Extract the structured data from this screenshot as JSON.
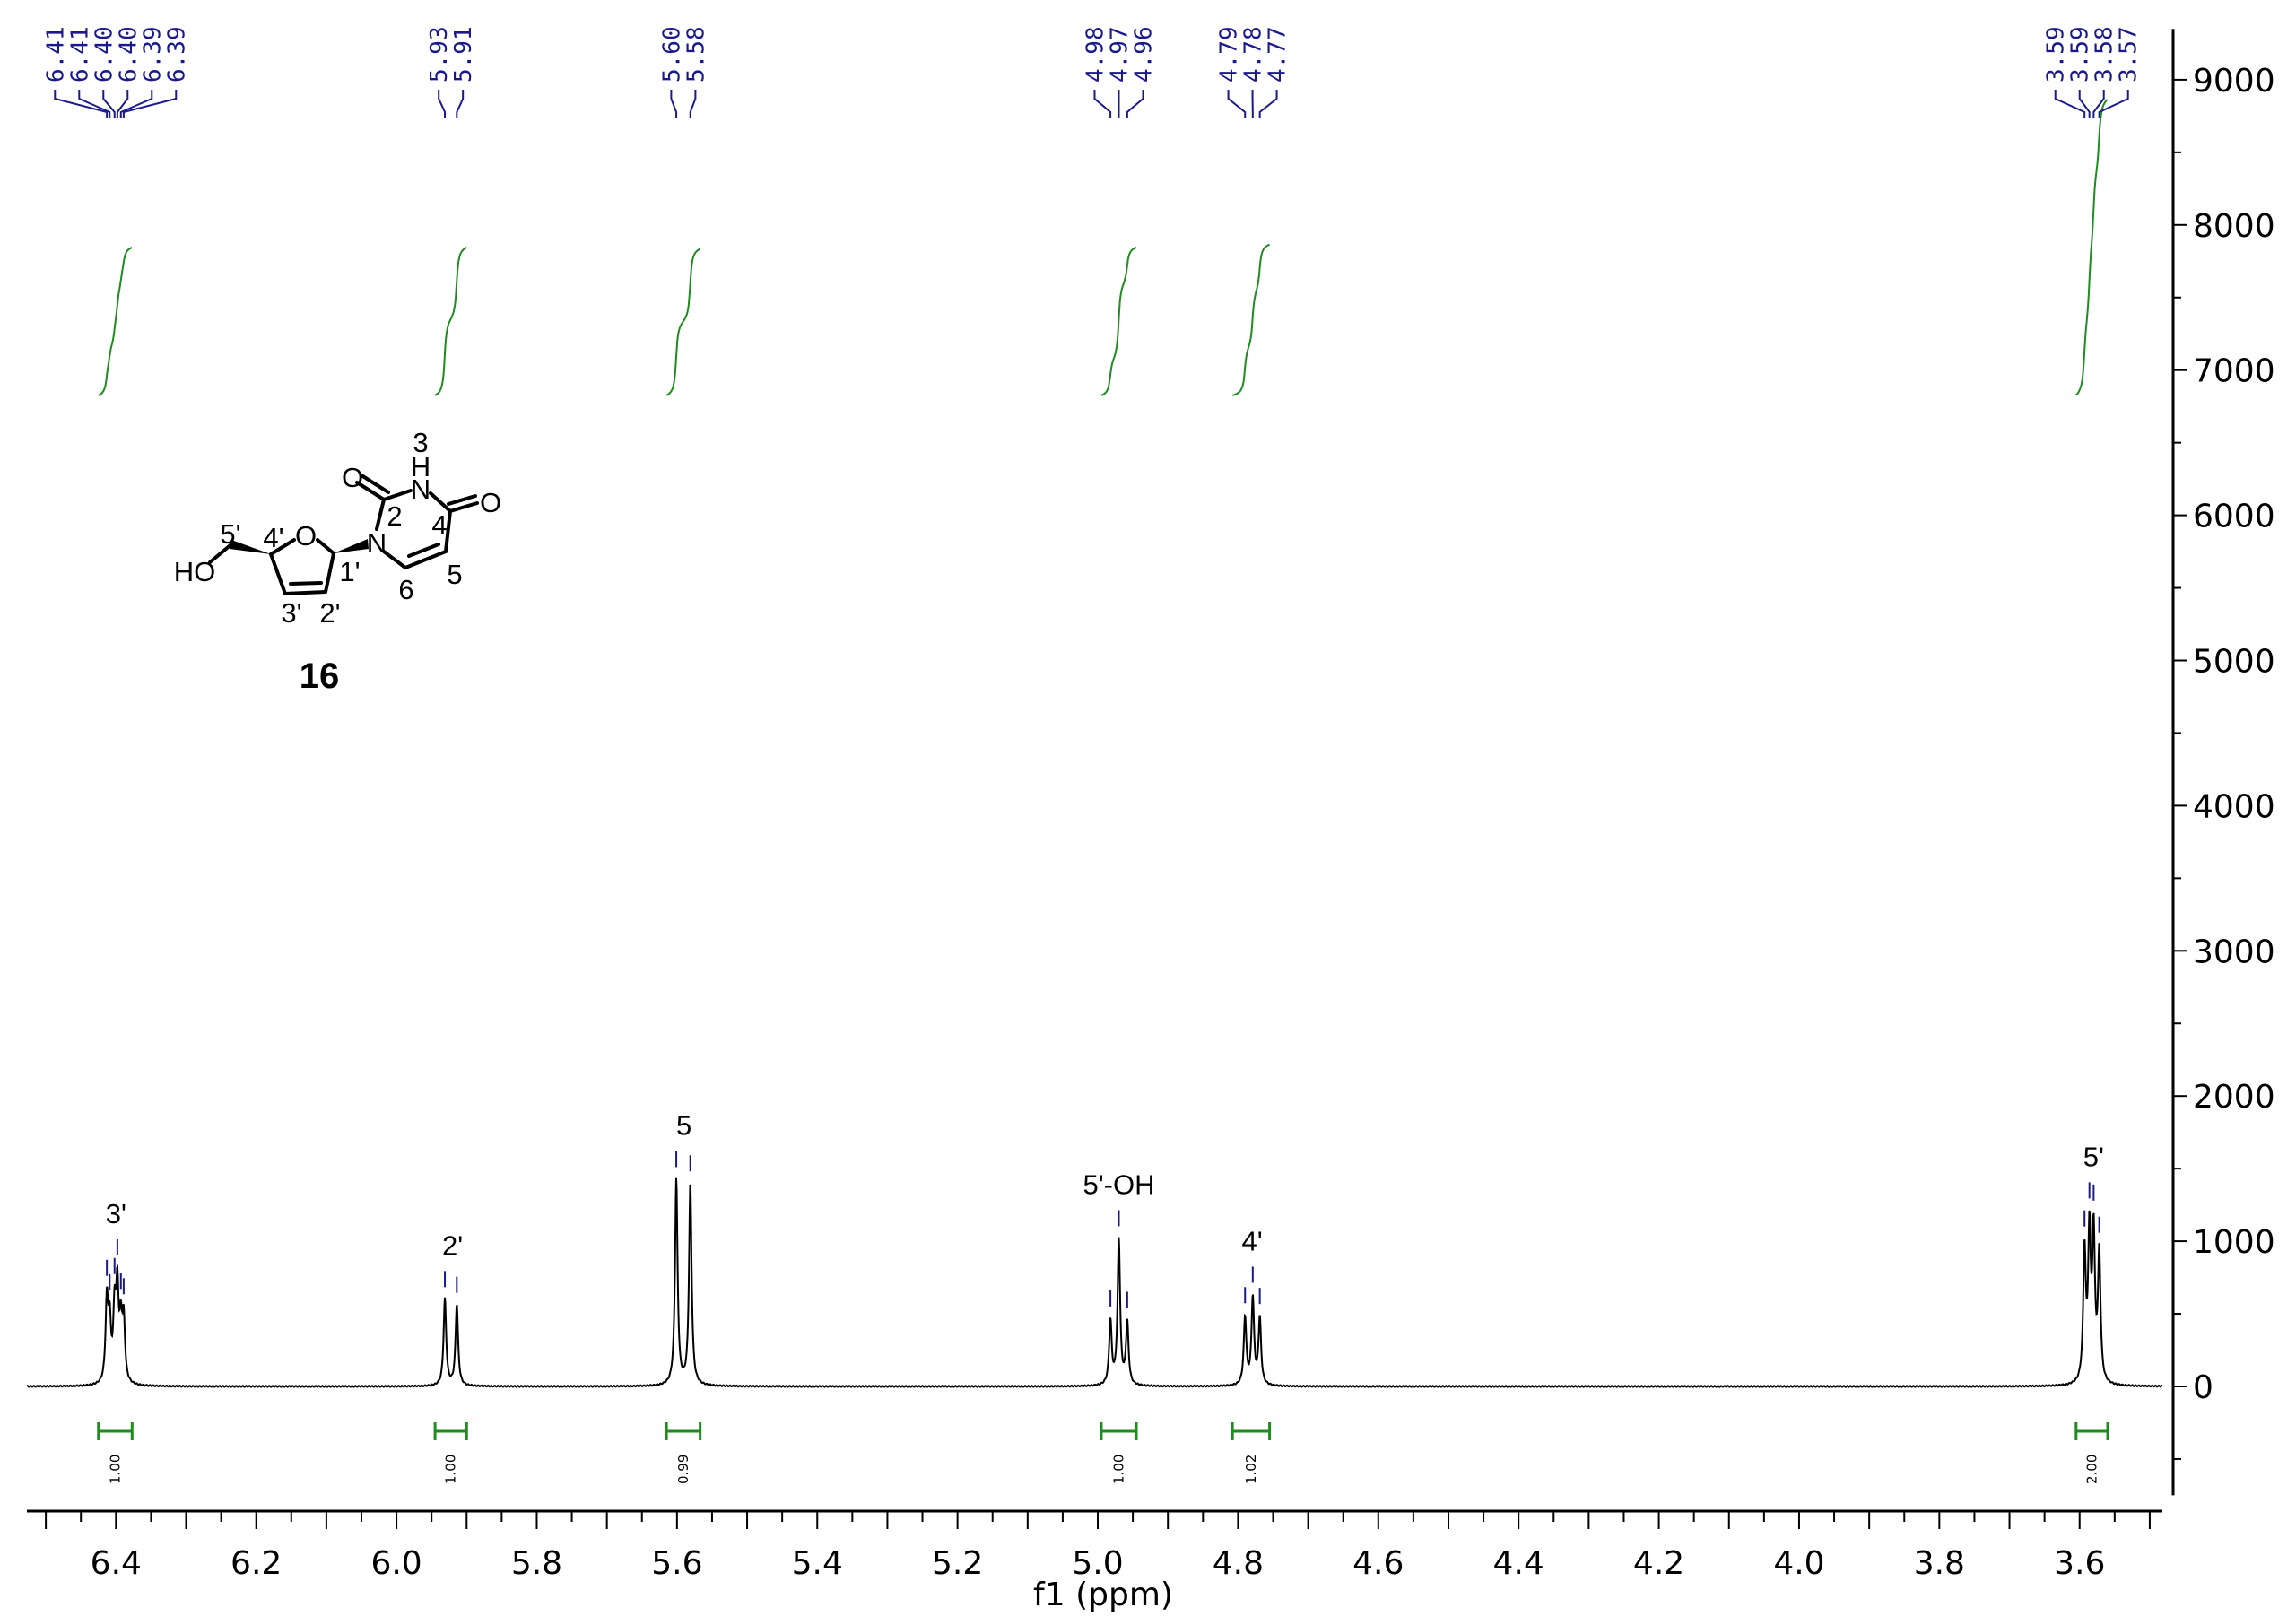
{
  "chart_data": {
    "type": "line",
    "title": "",
    "xlabel": "f1 (ppm)",
    "ylabel": "",
    "xlim": [
      6.527,
      3.482
    ],
    "ylim": [
      -750,
      9350
    ],
    "x_reversed": true,
    "grid": false,
    "x_ticks": [
      "6.4",
      "6.2",
      "6.0",
      "5.8",
      "5.6",
      "5.4",
      "5.2",
      "5.0",
      "4.8",
      "4.6",
      "4.4",
      "4.2",
      "4.0",
      "3.8",
      "3.6"
    ],
    "y_ticks": [
      "0",
      "1000",
      "2000",
      "3000",
      "4000",
      "5000",
      "6000",
      "7000",
      "8000",
      "9000"
    ],
    "colors": {
      "spectrum": "#000000",
      "peak_labels": "#1a1a8c",
      "integrals": "#1e8c1e"
    },
    "peaks": [
      {
        "ppm": 6.413,
        "intensity": 560
      },
      {
        "ppm": 6.409,
        "intensity": 380
      },
      {
        "ppm": 6.402,
        "intensity": 470
      },
      {
        "ppm": 6.398,
        "intensity": 610
      },
      {
        "ppm": 6.393,
        "intensity": 360
      },
      {
        "ppm": 6.389,
        "intensity": 420
      },
      {
        "ppm": 5.931,
        "intensity": 600
      },
      {
        "ppm": 5.914,
        "intensity": 560
      },
      {
        "ppm": 5.601,
        "intensity": 1420
      },
      {
        "ppm": 5.581,
        "intensity": 1390
      },
      {
        "ppm": 4.982,
        "intensity": 440
      },
      {
        "ppm": 4.97,
        "intensity": 1000
      },
      {
        "ppm": 4.958,
        "intensity": 430
      },
      {
        "ppm": 4.79,
        "intensity": 470
      },
      {
        "ppm": 4.779,
        "intensity": 600
      },
      {
        "ppm": 4.769,
        "intensity": 460
      },
      {
        "ppm": 3.593,
        "intensity": 900
      },
      {
        "ppm": 3.586,
        "intensity": 1000
      },
      {
        "ppm": 3.58,
        "intensity": 1000
      },
      {
        "ppm": 3.572,
        "intensity": 880
      }
    ],
    "peak_label_groups": [
      {
        "labels": [
          "6.41",
          "6.41",
          "6.40",
          "6.40",
          "6.39",
          "6.39"
        ],
        "ppm": [
          6.413,
          6.409,
          6.402,
          6.398,
          6.393,
          6.389
        ]
      },
      {
        "labels": [
          "5.93",
          "5.91"
        ],
        "ppm": [
          5.931,
          5.914
        ]
      },
      {
        "labels": [
          "5.60",
          "5.58"
        ],
        "ppm": [
          5.601,
          5.581
        ]
      },
      {
        "labels": [
          "4.98",
          "4.97",
          "4.96"
        ],
        "ppm": [
          4.982,
          4.97,
          4.958
        ]
      },
      {
        "labels": [
          "4.79",
          "4.78",
          "4.77"
        ],
        "ppm": [
          4.79,
          4.779,
          4.769
        ]
      },
      {
        "labels": [
          "3.59",
          "3.59",
          "3.58",
          "3.57"
        ],
        "ppm": [
          3.593,
          3.586,
          3.58,
          3.572
        ]
      }
    ],
    "integrals": [
      {
        "from": 6.425,
        "to": 6.377,
        "value": "1.00"
      },
      {
        "from": 5.945,
        "to": 5.9,
        "value": "1.00"
      },
      {
        "from": 5.615,
        "to": 5.567,
        "value": "0.99"
      },
      {
        "from": 4.995,
        "to": 4.945,
        "value": "1.00"
      },
      {
        "from": 4.808,
        "to": 4.755,
        "value": "1.02"
      },
      {
        "from": 3.605,
        "to": 3.56,
        "value": "2.00"
      }
    ],
    "annotations": [
      {
        "text": "3'",
        "ppm": 6.4
      },
      {
        "text": "2'",
        "ppm": 5.92
      },
      {
        "text": "5",
        "ppm": 5.59
      },
      {
        "text": "5'-OH",
        "ppm": 4.97
      },
      {
        "text": "4'",
        "ppm": 4.78
      },
      {
        "text": "5'",
        "ppm": 3.58
      }
    ]
  },
  "molecule": {
    "compound_number": "16",
    "atoms": {
      "HO": "HO",
      "O_ring": "O",
      "N1": "N",
      "N3": "N",
      "H3": "H",
      "O2": "O",
      "O4": "O"
    },
    "position_labels": [
      "5'",
      "4'",
      "1'",
      "2'",
      "3'",
      "2",
      "3",
      "4",
      "5",
      "6"
    ]
  }
}
